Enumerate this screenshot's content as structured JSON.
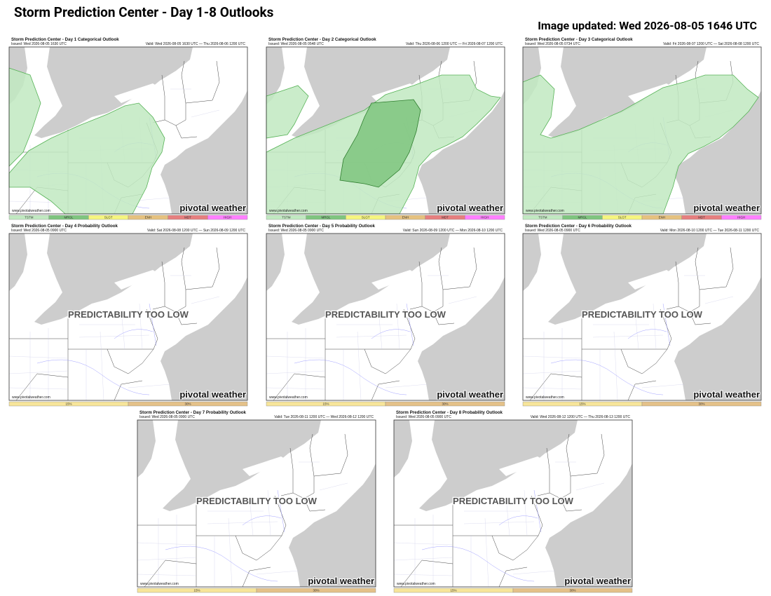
{
  "header": {
    "title": "Storm Prediction Center - Day 1-8 Outlooks",
    "updated": "Image updated: Wed 2026-08-05 1646 UTC"
  },
  "panels": [
    {
      "title": "Storm Prediction Center - Day 1 Categorical Outlook",
      "issued": "Issued: Wed 2026-08-05 1630 UTC",
      "valid": "Valid: Wed 2026-08-05 1630 UTC — Thu 2026-08-06 1200 UTC",
      "website": "www.pivotalweather.com",
      "watermark": "pivotal weather",
      "legend": [
        {
          "label": "TSTM",
          "color": "#c1e9c1"
        },
        {
          "label": "MRGL",
          "color": "#7fc57f"
        },
        {
          "label": "SLGT",
          "color": "#f6f67f"
        },
        {
          "label": "ENH",
          "color": "#e6c27f"
        },
        {
          "label": "MDT",
          "color": "#e67f7f"
        },
        {
          "label": "HIGH",
          "color": "#ff7fff"
        }
      ]
    },
    {
      "title": "Storm Prediction Center - Day 2 Categorical Outlook",
      "issued": "Issued: Wed 2026-08-05 0548 UTC",
      "valid": "Valid: Thu 2026-08-06 1200 UTC — Fri 2026-08-07 1200 UTC",
      "website": "www.pivotalweather.com",
      "watermark": "pivotal weather",
      "legend": [
        {
          "label": "TSTM",
          "color": "#c1e9c1"
        },
        {
          "label": "MRGL",
          "color": "#7fc57f"
        },
        {
          "label": "SLGT",
          "color": "#f6f67f"
        },
        {
          "label": "ENH",
          "color": "#e6c27f"
        },
        {
          "label": "MDT",
          "color": "#e67f7f"
        },
        {
          "label": "HIGH",
          "color": "#ff7fff"
        }
      ]
    },
    {
      "title": "Storm Prediction Center - Day 3 Categorical Outlook",
      "issued": "Issued: Wed 2026-08-05 0734 UTC",
      "valid": "Valid: Fri 2026-08-07 1200 UTC — Sat 2026-08-08 1200 UTC",
      "website": "www.pivotalweather.com",
      "watermark": "pivotal weather",
      "legend": [
        {
          "label": "TSTM",
          "color": "#c1e9c1"
        },
        {
          "label": "MRGL",
          "color": "#7fc57f"
        },
        {
          "label": "SLGT",
          "color": "#f6f67f"
        },
        {
          "label": "ENH",
          "color": "#e6c27f"
        },
        {
          "label": "MDT",
          "color": "#e67f7f"
        },
        {
          "label": "HIGH",
          "color": "#ff7fff"
        }
      ]
    },
    {
      "title": "Storm Prediction Center - Day 4 Probability Outlook",
      "issued": "Issued: Wed 2026-08-05 0900 UTC",
      "valid": "Valid: Sat 2026-08-08 1200 UTC — Sun 2026-08-09 1200 UTC",
      "website": "www.pivotalweather.com",
      "watermark": "pivotal weather",
      "notice": "PREDICTABILITY TOO LOW",
      "legend": [
        {
          "label": "15%",
          "color": "#f7e59a"
        },
        {
          "label": "30%",
          "color": "#e4c189"
        }
      ]
    },
    {
      "title": "Storm Prediction Center - Day 5 Probability Outlook",
      "issued": "Issued: Wed 2026-08-05 0900 UTC",
      "valid": "Valid: Sun 2026-08-09 1200 UTC — Mon 2026-08-10 1200 UTC",
      "website": "www.pivotalweather.com",
      "watermark": "pivotal weather",
      "notice": "PREDICTABILITY TOO LOW",
      "legend": [
        {
          "label": "15%",
          "color": "#f7e59a"
        },
        {
          "label": "30%",
          "color": "#e4c189"
        }
      ]
    },
    {
      "title": "Storm Prediction Center - Day 6 Probability Outlook",
      "issued": "Issued: Wed 2026-08-05 0900 UTC",
      "valid": "Valid: Mon 2026-08-10 1200 UTC — Tue 2026-08-11 1200 UTC",
      "website": "www.pivotalweather.com",
      "watermark": "pivotal weather",
      "notice": "PREDICTABILITY TOO LOW",
      "legend": [
        {
          "label": "15%",
          "color": "#f7e59a"
        },
        {
          "label": "30%",
          "color": "#e4c189"
        }
      ]
    },
    {
      "title": "Storm Prediction Center - Day 7 Probability Outlook",
      "issued": "Issued: Wed 2026-08-05 0900 UTC",
      "valid": "Valid: Tue 2026-08-11 1200 UTC — Wed 2026-08-12 1200 UTC",
      "website": "www.pivotalweather.com",
      "watermark": "pivotal weather",
      "notice": "PREDICTABILITY TOO LOW",
      "legend": [
        {
          "label": "15%",
          "color": "#f7e59a"
        },
        {
          "label": "30%",
          "color": "#e4c189"
        }
      ]
    },
    {
      "title": "Storm Prediction Center - Day 8 Probability Outlook",
      "issued": "Issued: Wed 2026-08-05 0900 UTC",
      "valid": "Valid: Wed 2026-08-12 1200 UTC — Thu 2026-08-13 1200 UTC",
      "website": "www.pivotalweather.com",
      "watermark": "pivotal weather",
      "notice": "PREDICTABILITY TOO LOW",
      "legend": [
        {
          "label": "15%",
          "color": "#f7e59a"
        },
        {
          "label": "30%",
          "color": "#e4c189"
        }
      ]
    }
  ]
}
